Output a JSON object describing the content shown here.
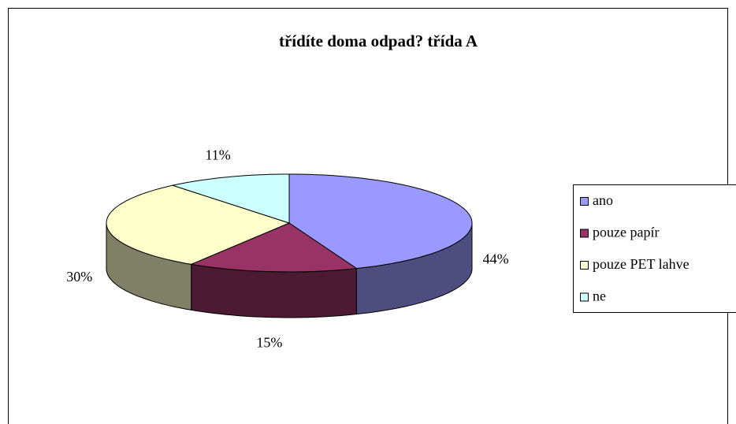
{
  "chart_data": {
    "type": "pie",
    "title": "třídíte doma odpad? třída A",
    "categories": [
      "ano",
      "pouze papír",
      "pouze PET lahve",
      "ne"
    ],
    "values": [
      44,
      15,
      30,
      11
    ],
    "value_labels": [
      "44%",
      "15%",
      "30%",
      "11%"
    ],
    "colors": [
      "#9999ff",
      "#993366",
      "#ffffcc",
      "#ccffff"
    ],
    "legend": "right"
  }
}
